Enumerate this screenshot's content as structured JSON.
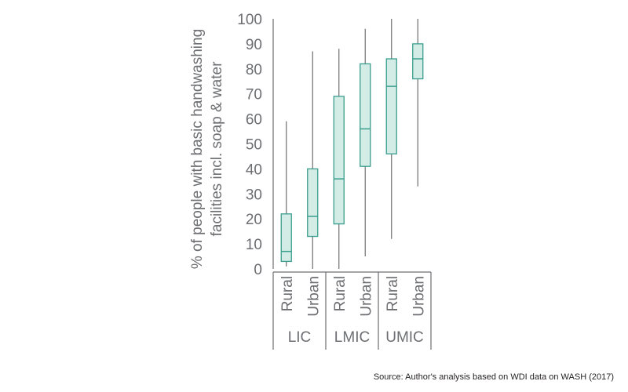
{
  "chart_data": {
    "type": "box",
    "ylabel_lines": [
      "% of people with basic handwashing",
      "facilities incl. soap & water"
    ],
    "ylim": [
      0,
      100
    ],
    "yticks": [
      0,
      10,
      20,
      30,
      40,
      50,
      60,
      70,
      80,
      90,
      100
    ],
    "groups": [
      {
        "name": "LIC",
        "categories": [
          "Rural",
          "Urban"
        ]
      },
      {
        "name": "LMIC",
        "categories": [
          "Rural",
          "Urban"
        ]
      },
      {
        "name": "UMIC",
        "categories": [
          "Rural",
          "Urban"
        ]
      }
    ],
    "boxes": [
      {
        "group": "LIC",
        "category": "Rural",
        "min": 1,
        "q1": 3,
        "median": 7,
        "q3": 22,
        "max": 59
      },
      {
        "group": "LIC",
        "category": "Urban",
        "min": 0,
        "q1": 13,
        "median": 21,
        "q3": 40,
        "max": 87
      },
      {
        "group": "LMIC",
        "category": "Rural",
        "min": 0,
        "q1": 18,
        "median": 36,
        "q3": 69,
        "max": 88
      },
      {
        "group": "LMIC",
        "category": "Urban",
        "min": 5,
        "q1": 41,
        "median": 56,
        "q3": 82,
        "max": 96
      },
      {
        "group": "UMIC",
        "category": "Rural",
        "min": 12,
        "q1": 46,
        "median": 73,
        "q3": 84,
        "max": 100
      },
      {
        "group": "UMIC",
        "category": "Urban",
        "min": 33,
        "q1": 76,
        "median": 84,
        "q3": 90,
        "max": 100
      }
    ],
    "grid": false,
    "colors": {
      "box_fill": "#d3ece6",
      "box_stroke": "#3a9e8d",
      "whisker": "#6d6e71",
      "axis": "#6d6e71",
      "text": "#6d6e71"
    }
  },
  "source": "Source:  Author's analysis based on WDI data on WASH (2017)"
}
